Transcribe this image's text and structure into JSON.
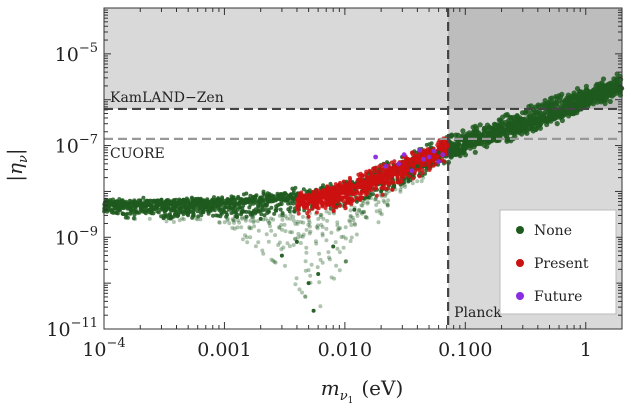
{
  "chart_data": {
    "type": "scatter",
    "title": "",
    "xlabel": {
      "main": "m",
      "sub": "ν",
      "subsub": "1",
      "unit": "(eV)"
    },
    "ylabel": {
      "main": "|η",
      "sub": "ν",
      "close": "|"
    },
    "xscale": "log",
    "yscale": "log",
    "xlim": [
      0.0001,
      2.0
    ],
    "ylim": [
      1e-11,
      0.0001
    ],
    "x_ticks": [
      {
        "value": 0.0001,
        "label": "10",
        "sup": "−4"
      },
      {
        "value": 0.001,
        "label": "0.001",
        "sup": ""
      },
      {
        "value": 0.01,
        "label": "0.010",
        "sup": ""
      },
      {
        "value": 0.1,
        "label": "0.100",
        "sup": ""
      },
      {
        "value": 1,
        "label": "1",
        "sup": ""
      }
    ],
    "y_ticks": [
      {
        "value": 1e-11,
        "label": "10",
        "sup": "−11"
      },
      {
        "value": 1e-09,
        "label": "10",
        "sup": "−9"
      },
      {
        "value": 1e-07,
        "label": "10",
        "sup": "−7"
      },
      {
        "value": 1e-05,
        "label": "10",
        "sup": "−5"
      }
    ],
    "bounds": [
      {
        "name": "KamLAND-Zen",
        "label": "KamLAND−Zen",
        "axis": "y",
        "value": 6.3e-07,
        "style": "dashed",
        "color": "#444444",
        "shaded": "above"
      },
      {
        "name": "CUORE",
        "label": "CUORE",
        "axis": "y",
        "value": 1.4e-07,
        "style": "dashed",
        "color": "#999999",
        "shaded": "none"
      },
      {
        "name": "Planck",
        "label": "Planck",
        "axis": "x",
        "value": 0.072,
        "style": "dashed",
        "color": "#444444",
        "shaded": "right"
      }
    ],
    "legend": {
      "position": "bottom-right",
      "entries": [
        {
          "label": "None",
          "color": "#1e5a1e"
        },
        {
          "label": "Present",
          "color": "#cc1111"
        },
        {
          "label": "Future",
          "color": "#8a2be2"
        }
      ]
    },
    "series": [
      {
        "name": "None",
        "color": "#1e5a1e",
        "band": {
          "x_range": [
            0.0001,
            2.0
          ],
          "center_log_eta": [
            [
              0.0001,
              -8.3
            ],
            [
              0.001,
              -8.28
            ],
            [
              0.003,
              -8.22
            ],
            [
              0.01,
              -8.05
            ],
            [
              0.03,
              -7.55
            ],
            [
              0.072,
              -7.1
            ],
            [
              0.3,
              -6.55
            ],
            [
              1.0,
              -6.0
            ],
            [
              2.0,
              -5.7
            ]
          ],
          "upper_log_eta": [
            [
              0.0001,
              -8.2
            ],
            [
              0.001,
              -8.15
            ],
            [
              0.01,
              -7.85
            ],
            [
              0.03,
              -7.25
            ],
            [
              0.072,
              -6.85
            ],
            [
              2.0,
              -5.45
            ]
          ],
          "lower_log_eta": [
            [
              0.0001,
              -8.5
            ],
            [
              0.001,
              -8.7
            ],
            [
              0.003,
              -9.6
            ],
            [
              0.006,
              -10.6
            ],
            [
              0.01,
              -9.5
            ],
            [
              0.03,
              -8.0
            ],
            [
              0.072,
              -7.35
            ],
            [
              2.0,
              -5.95
            ]
          ]
        },
        "points": [
          [
            0.00012,
            -8.3
          ],
          [
            0.0004,
            -8.32
          ],
          [
            0.0008,
            -8.35
          ],
          [
            0.002,
            -8.6
          ],
          [
            0.003,
            -9.4
          ],
          [
            0.004,
            -9.1
          ],
          [
            0.005,
            -10.0
          ],
          [
            0.0055,
            -10.6
          ],
          [
            0.006,
            -9.8
          ],
          [
            0.008,
            -9.2
          ],
          [
            0.012,
            -8.4
          ],
          [
            0.02,
            -8.0
          ],
          [
            0.04,
            -7.45
          ],
          [
            0.06,
            -7.15
          ],
          [
            0.1,
            -6.95
          ],
          [
            0.5,
            -6.25
          ],
          [
            1.0,
            -6.0
          ],
          [
            1.8,
            -5.75
          ]
        ]
      },
      {
        "name": "Present",
        "color": "#cc1111",
        "band": {
          "x_range": [
            0.004,
            0.072
          ],
          "center_log_eta": [
            [
              0.004,
              -8.25
            ],
            [
              0.01,
              -8.0
            ],
            [
              0.02,
              -7.7
            ],
            [
              0.04,
              -7.35
            ],
            [
              0.072,
              -7.05
            ]
          ],
          "upper_log_eta": [
            [
              0.004,
              -8.1
            ],
            [
              0.01,
              -7.8
            ],
            [
              0.03,
              -7.3
            ],
            [
              0.072,
              -6.85
            ]
          ],
          "lower_log_eta": [
            [
              0.004,
              -8.45
            ],
            [
              0.01,
              -8.35
            ],
            [
              0.03,
              -7.85
            ],
            [
              0.072,
              -7.25
            ]
          ]
        },
        "points": [
          [
            0.005,
            -8.55
          ],
          [
            0.008,
            -8.3
          ],
          [
            0.015,
            -8.0
          ],
          [
            0.03,
            -7.55
          ],
          [
            0.05,
            -7.3
          ],
          [
            0.07,
            -7.05
          ]
        ]
      },
      {
        "name": "Future",
        "color": "#8a2be2",
        "points": [
          [
            0.018,
            -7.25
          ],
          [
            0.022,
            -7.45
          ],
          [
            0.028,
            -7.4
          ],
          [
            0.031,
            -7.2
          ],
          [
            0.036,
            -7.55
          ],
          [
            0.042,
            -7.1
          ],
          [
            0.045,
            -7.3
          ],
          [
            0.05,
            -7.25
          ],
          [
            0.055,
            -7.12
          ],
          [
            0.06,
            -7.35
          ],
          [
            0.065,
            -7.2
          ]
        ]
      }
    ],
    "grid": false
  }
}
